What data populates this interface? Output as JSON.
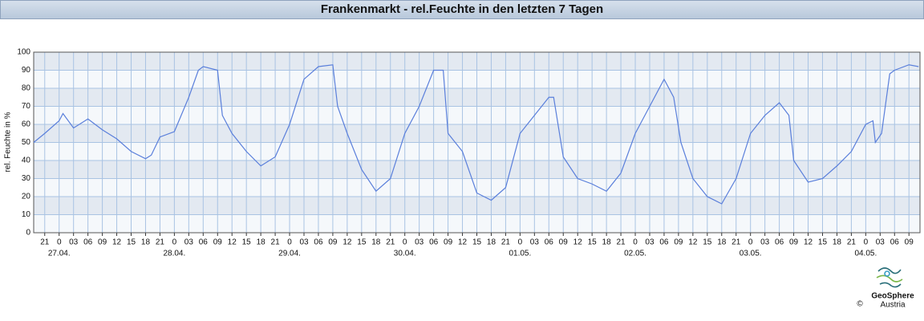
{
  "chart_data": {
    "type": "line",
    "title": "Frankenmarkt - rel.Feuchte in den letzten 7 Tagen",
    "y_label": "rel. Feuchte in %",
    "x": [
      -5.3,
      -3,
      0,
      0.8,
      3,
      6,
      9,
      12,
      15,
      18,
      19.2,
      21,
      24,
      27,
      29,
      30,
      33,
      34,
      36,
      39,
      42,
      45,
      48,
      51,
      54,
      57,
      58,
      60,
      63,
      66,
      69,
      72,
      75,
      78,
      80,
      81,
      84,
      87,
      90,
      93,
      96,
      99,
      102,
      103,
      105,
      108,
      111,
      114,
      117,
      120,
      123,
      126,
      128,
      129.5,
      132,
      135,
      138,
      141,
      144,
      147,
      150,
      152,
      153,
      156,
      159,
      162,
      165,
      168,
      169.5,
      170,
      171.3,
      173,
      174,
      177,
      179
    ],
    "series": [
      {
        "name": "rel. Feuchte",
        "color": "#5a7fdb",
        "values": [
          50,
          55,
          62,
          66,
          58,
          63,
          57,
          52,
          45,
          41,
          43,
          53,
          56,
          75,
          90,
          92,
          90,
          65,
          55,
          45,
          37,
          42,
          60,
          85,
          92,
          93,
          70,
          55,
          35,
          23,
          30,
          55,
          70,
          90,
          90,
          55,
          45,
          22,
          18,
          25,
          55,
          65,
          75,
          75,
          42,
          30,
          27,
          23,
          33,
          55,
          70,
          85,
          75,
          50,
          30,
          20,
          16,
          30,
          55,
          65,
          72,
          65,
          40,
          28,
          30,
          37,
          45,
          60,
          62,
          50,
          55,
          88,
          90,
          93,
          92
        ]
      }
    ],
    "xlim": [
      -5.3,
      179.3
    ],
    "xticks": [
      {
        "value": -3,
        "label": "21"
      },
      {
        "value": 0,
        "label": "0"
      },
      {
        "value": 3,
        "label": "03"
      },
      {
        "value": 6,
        "label": "06"
      },
      {
        "value": 9,
        "label": "09"
      },
      {
        "value": 12,
        "label": "12"
      },
      {
        "value": 15,
        "label": "15"
      },
      {
        "value": 18,
        "label": "18"
      },
      {
        "value": 21,
        "label": "21"
      },
      {
        "value": 24,
        "label": "0"
      },
      {
        "value": 27,
        "label": "03"
      },
      {
        "value": 30,
        "label": "06"
      },
      {
        "value": 33,
        "label": "09"
      },
      {
        "value": 36,
        "label": "12"
      },
      {
        "value": 39,
        "label": "15"
      },
      {
        "value": 42,
        "label": "18"
      },
      {
        "value": 45,
        "label": "21"
      },
      {
        "value": 48,
        "label": "0"
      },
      {
        "value": 51,
        "label": "03"
      },
      {
        "value": 54,
        "label": "06"
      },
      {
        "value": 57,
        "label": "09"
      },
      {
        "value": 60,
        "label": "12"
      },
      {
        "value": 63,
        "label": "15"
      },
      {
        "value": 66,
        "label": "18"
      },
      {
        "value": 69,
        "label": "21"
      },
      {
        "value": 72,
        "label": "0"
      },
      {
        "value": 75,
        "label": "03"
      },
      {
        "value": 78,
        "label": "06"
      },
      {
        "value": 81,
        "label": "09"
      },
      {
        "value": 84,
        "label": "12"
      },
      {
        "value": 87,
        "label": "15"
      },
      {
        "value": 90,
        "label": "18"
      },
      {
        "value": 93,
        "label": "21"
      },
      {
        "value": 96,
        "label": "0"
      },
      {
        "value": 99,
        "label": "03"
      },
      {
        "value": 102,
        "label": "06"
      },
      {
        "value": 105,
        "label": "09"
      },
      {
        "value": 108,
        "label": "12"
      },
      {
        "value": 111,
        "label": "15"
      },
      {
        "value": 114,
        "label": "18"
      },
      {
        "value": 117,
        "label": "21"
      },
      {
        "value": 120,
        "label": "0"
      },
      {
        "value": 123,
        "label": "03"
      },
      {
        "value": 126,
        "label": "06"
      },
      {
        "value": 129,
        "label": "09"
      },
      {
        "value": 132,
        "label": "12"
      },
      {
        "value": 135,
        "label": "15"
      },
      {
        "value": 138,
        "label": "18"
      },
      {
        "value": 141,
        "label": "21"
      },
      {
        "value": 144,
        "label": "0"
      },
      {
        "value": 147,
        "label": "03"
      },
      {
        "value": 150,
        "label": "06"
      },
      {
        "value": 153,
        "label": "09"
      },
      {
        "value": 156,
        "label": "12"
      },
      {
        "value": 159,
        "label": "15"
      },
      {
        "value": 162,
        "label": "18"
      },
      {
        "value": 165,
        "label": "21"
      },
      {
        "value": 168,
        "label": "0"
      },
      {
        "value": 171,
        "label": "03"
      },
      {
        "value": 174,
        "label": "06"
      },
      {
        "value": 177,
        "label": "09"
      }
    ],
    "date_labels": [
      {
        "value": 0,
        "label": "27.04."
      },
      {
        "value": 24,
        "label": "28.04."
      },
      {
        "value": 48,
        "label": "29.04."
      },
      {
        "value": 72,
        "label": "30.04."
      },
      {
        "value": 96,
        "label": "01.05."
      },
      {
        "value": 120,
        "label": "02.05."
      },
      {
        "value": 144,
        "label": "03.05."
      },
      {
        "value": 168,
        "label": "04.05."
      }
    ],
    "ylim": [
      0,
      100
    ],
    "yticks": [
      0,
      10,
      20,
      30,
      40,
      50,
      60,
      70,
      80,
      90,
      100
    ],
    "grid": true
  },
  "footer": {
    "brand": "GeoSphere",
    "brand_sub": "Austria",
    "copyright": "©"
  }
}
